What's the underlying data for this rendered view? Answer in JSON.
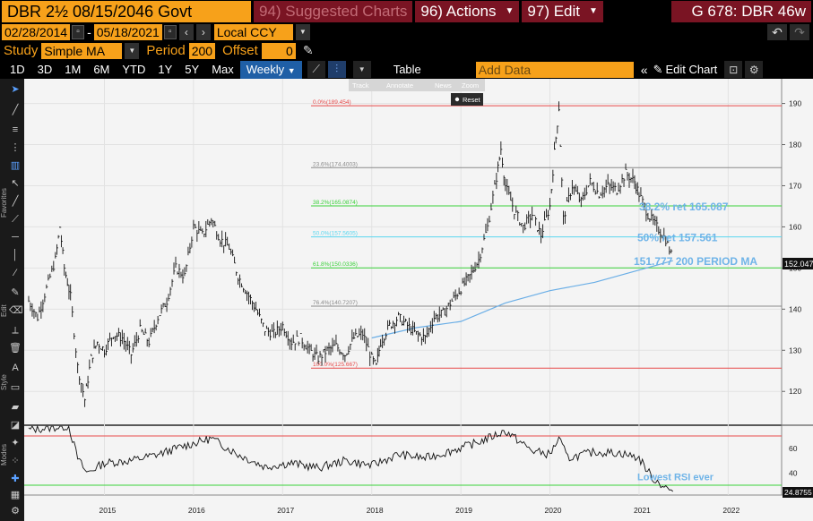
{
  "header": {
    "ticker": "DBR 2½ 08/15/2046 Govt",
    "menu_suggested": "94) Suggested Charts",
    "menu_actions": "96) Actions",
    "menu_edit": "97) Edit",
    "right_title": "G 678: DBR 46w"
  },
  "range": {
    "start_date": "02/28/2014",
    "separator": "-",
    "end_date": "05/18/2021",
    "currency": "Local CCY"
  },
  "study": {
    "study_label": "Study",
    "study_value": "Simple MA",
    "period_label": "Period",
    "period_value": "200",
    "offset_label": "Offset",
    "offset_value": "0"
  },
  "toolbar": {
    "tabs": [
      "1D",
      "3D",
      "1M",
      "6M",
      "YTD",
      "1Y",
      "5Y",
      "Max"
    ],
    "active_tab": "Weekly",
    "table_label": "Table",
    "add_data_placeholder": "Add Data",
    "edit_chart_label": "Edit Chart"
  },
  "hover_toolbar": {
    "track": "Track",
    "annotate": "Annotate",
    "news": "News",
    "zoom": "Zoom",
    "reset": "Reset"
  },
  "sidebar_labels": {
    "favorites": "Favorites",
    "edit": "Edit",
    "style": "Style",
    "modes": "Modes"
  },
  "chart_data": {
    "type": "line",
    "x_ticks": [
      "2015",
      "2016",
      "2017",
      "2018",
      "2019",
      "2020",
      "2021",
      "2022"
    ],
    "y_ticks": [
      120,
      130,
      140,
      150,
      160,
      170,
      180,
      190
    ],
    "ylim": [
      112,
      196
    ],
    "last_price": "152.047",
    "fib_levels": [
      {
        "label": "0.0%(189.454)",
        "value": 189.454,
        "color": "#e84a4a"
      },
      {
        "label": "23.6%(174.4003)",
        "value": 174.4003,
        "color": "#8a8a8a"
      },
      {
        "label": "38.2%(165.0874)",
        "value": 165.0874,
        "color": "#3ad23a"
      },
      {
        "label": "50.0%(157.5605)",
        "value": 157.5605,
        "color": "#5ad7f0"
      },
      {
        "label": "61.8%(150.0336)",
        "value": 150.0336,
        "color": "#3ad23a"
      },
      {
        "label": "76.4%(140.7207)",
        "value": 140.7207,
        "color": "#8a8a8a"
      },
      {
        "label": "100.0%(125.667)",
        "value": 125.667,
        "color": "#e84a4a"
      }
    ],
    "annotations": [
      {
        "text": "38.2% ret 165.087",
        "value": 165.087
      },
      {
        "text": "50% ret 157.561",
        "value": 157.561
      },
      {
        "text": "151.777 200 PERIOD MA",
        "value": 151.777
      }
    ],
    "price_series": [
      [
        2014.15,
        142
      ],
      [
        2014.25,
        138
      ],
      [
        2014.35,
        145
      ],
      [
        2014.45,
        152
      ],
      [
        2014.5,
        160
      ],
      [
        2014.55,
        150
      ],
      [
        2014.62,
        143
      ],
      [
        2014.7,
        126
      ],
      [
        2014.78,
        118
      ],
      [
        2014.85,
        128
      ],
      [
        2014.92,
        132
      ],
      [
        2015.0,
        130
      ],
      [
        2015.1,
        134
      ],
      [
        2015.2,
        133
      ],
      [
        2015.3,
        129
      ],
      [
        2015.4,
        135
      ],
      [
        2015.5,
        132
      ],
      [
        2015.6,
        138
      ],
      [
        2015.7,
        142
      ],
      [
        2015.8,
        150
      ],
      [
        2015.9,
        148
      ],
      [
        2016.0,
        160
      ],
      [
        2016.1,
        158
      ],
      [
        2016.2,
        162
      ],
      [
        2016.3,
        157
      ],
      [
        2016.4,
        155
      ],
      [
        2016.5,
        148
      ],
      [
        2016.6,
        144
      ],
      [
        2016.7,
        140
      ],
      [
        2016.8,
        135
      ],
      [
        2016.9,
        134
      ],
      [
        2017.0,
        136
      ],
      [
        2017.1,
        132
      ],
      [
        2017.2,
        133
      ],
      [
        2017.3,
        130
      ],
      [
        2017.4,
        128
      ],
      [
        2017.5,
        130
      ],
      [
        2017.6,
        131
      ],
      [
        2017.7,
        129
      ],
      [
        2017.8,
        133
      ],
      [
        2017.9,
        134
      ],
      [
        2018.0,
        128
      ],
      [
        2018.05,
        126
      ],
      [
        2018.1,
        132
      ],
      [
        2018.2,
        136
      ],
      [
        2018.3,
        138
      ],
      [
        2018.4,
        136
      ],
      [
        2018.5,
        134
      ],
      [
        2018.6,
        133
      ],
      [
        2018.7,
        138
      ],
      [
        2018.8,
        139
      ],
      [
        2018.9,
        142
      ],
      [
        2019.0,
        145
      ],
      [
        2019.1,
        148
      ],
      [
        2019.2,
        152
      ],
      [
        2019.3,
        160
      ],
      [
        2019.4,
        172
      ],
      [
        2019.45,
        179
      ],
      [
        2019.5,
        170
      ],
      [
        2019.6,
        164
      ],
      [
        2019.7,
        160
      ],
      [
        2019.8,
        163
      ],
      [
        2019.9,
        158
      ],
      [
        2020.0,
        165
      ],
      [
        2020.05,
        178
      ],
      [
        2020.1,
        189
      ],
      [
        2020.15,
        162
      ],
      [
        2020.25,
        170
      ],
      [
        2020.35,
        166
      ],
      [
        2020.45,
        171
      ],
      [
        2020.55,
        168
      ],
      [
        2020.65,
        170
      ],
      [
        2020.75,
        169
      ],
      [
        2020.85,
        173
      ],
      [
        2020.95,
        171
      ],
      [
        2021.0,
        168
      ],
      [
        2021.1,
        163
      ],
      [
        2021.2,
        160
      ],
      [
        2021.3,
        157
      ],
      [
        2021.38,
        152
      ]
    ],
    "ma_series": [
      [
        2018.0,
        133
      ],
      [
        2018.5,
        135.5
      ],
      [
        2019.0,
        137
      ],
      [
        2019.5,
        141.5
      ],
      [
        2020.0,
        144.5
      ],
      [
        2020.5,
        146.5
      ],
      [
        2021.0,
        149.5
      ],
      [
        2021.38,
        151.777
      ]
    ],
    "rsi": {
      "y_ticks": [
        40,
        60
      ],
      "ylim": [
        22,
        78
      ],
      "upper": 70,
      "lower": 30,
      "last_value": "24.8755",
      "annotation": "Lowest RSI ever",
      "series": [
        [
          2014.15,
          75
        ],
        [
          2014.6,
          78
        ],
        [
          2014.7,
          52
        ],
        [
          2014.8,
          40
        ],
        [
          2015.0,
          48
        ],
        [
          2015.3,
          50
        ],
        [
          2015.6,
          55
        ],
        [
          2015.9,
          62
        ],
        [
          2016.2,
          68
        ],
        [
          2016.5,
          55
        ],
        [
          2016.8,
          45
        ],
        [
          2017.1,
          48
        ],
        [
          2017.4,
          44
        ],
        [
          2017.7,
          50
        ],
        [
          2018.0,
          46
        ],
        [
          2018.3,
          55
        ],
        [
          2018.6,
          52
        ],
        [
          2018.9,
          58
        ],
        [
          2019.2,
          65
        ],
        [
          2019.5,
          74
        ],
        [
          2019.8,
          58
        ],
        [
          2020.0,
          55
        ],
        [
          2020.1,
          68
        ],
        [
          2020.2,
          52
        ],
        [
          2020.5,
          57
        ],
        [
          2020.8,
          56
        ],
        [
          2021.0,
          52
        ],
        [
          2021.15,
          36
        ],
        [
          2021.3,
          28
        ],
        [
          2021.38,
          24.9
        ]
      ]
    }
  }
}
